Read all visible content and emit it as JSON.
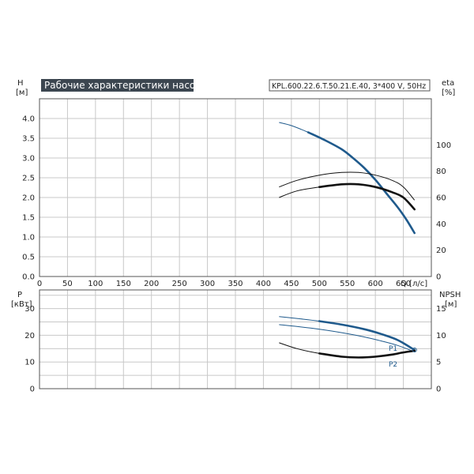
{
  "header": {
    "title": "Рабочие характеристики насоса",
    "model": "KPL.600.22.6.T.50.21.E.40, 3*400 V, 50Hz"
  },
  "colors": {
    "blue": "#1f5a8c",
    "black": "#111111",
    "grid": "#c8c8c8",
    "title_bg": "#3c4650"
  },
  "chart_data": [
    {
      "type": "line",
      "panel": "top",
      "xlabel": "Q [л/с]",
      "xlim": [
        0,
        700
      ],
      "xticks": [
        0,
        50,
        100,
        150,
        200,
        250,
        300,
        350,
        400,
        450,
        500,
        550,
        600,
        650
      ],
      "left_axis": {
        "label_line1": "H",
        "label_line2": "[м]",
        "ylim": [
          0,
          4.5
        ],
        "ticks": [
          "0.0",
          "0.5",
          "1.0",
          "1.5",
          "2.0",
          "2.5",
          "3.0",
          "3.5",
          "4.0"
        ]
      },
      "right_axis": {
        "label_line1": "eta",
        "label_line2": "[%]",
        "ylim": [
          0,
          135
        ],
        "ticks": [
          "0",
          "20",
          "40",
          "60",
          "80",
          "100"
        ]
      },
      "series": [
        {
          "axis": "left",
          "color": "blue",
          "points": [
            [
              428,
              3.9
            ],
            [
              450,
              3.82
            ],
            [
              480,
              3.65
            ],
            [
              510,
              3.45
            ],
            [
              540,
              3.22
            ],
            [
              560,
              3.0
            ],
            [
              580,
              2.75
            ],
            [
              600,
              2.45
            ],
            [
              620,
              2.1
            ],
            [
              640,
              1.75
            ],
            [
              655,
              1.45
            ],
            [
              670,
              1.1
            ]
          ],
          "bold_from": 480
        },
        {
          "axis": "right",
          "color": "black",
          "points": [
            [
              428,
              60
            ],
            [
              460,
              65
            ],
            [
              500,
              68
            ],
            [
              540,
              70
            ],
            [
              570,
              70
            ],
            [
              600,
              68
            ],
            [
              630,
              64
            ],
            [
              650,
              60
            ],
            [
              670,
              51
            ]
          ],
          "bold_from": 480
        },
        {
          "axis": "right",
          "color": "black",
          "points": [
            [
              428,
              68
            ],
            [
              460,
              73
            ],
            [
              500,
              77
            ],
            [
              540,
              79
            ],
            [
              570,
              79
            ],
            [
              600,
              77
            ],
            [
              630,
              73
            ],
            [
              650,
              68
            ],
            [
              670,
              58
            ]
          ],
          "bold_from": 9999
        }
      ]
    },
    {
      "type": "line",
      "panel": "bottom",
      "xlim": [
        0,
        700
      ],
      "left_axis": {
        "label_line1": "P",
        "label_line2": "[кВт]",
        "ylim": [
          0,
          37
        ],
        "ticks": [
          "0",
          "10",
          "20",
          "30"
        ]
      },
      "right_axis": {
        "label_line1": "NPSH",
        "label_line2": "[м]",
        "ylim": [
          0,
          18.5
        ],
        "ticks": [
          "0",
          "5",
          "10",
          "15"
        ]
      },
      "series": [
        {
          "axis": "left",
          "name": "P1",
          "color": "blue",
          "points": [
            [
              428,
              27
            ],
            [
              460,
              26.3
            ],
            [
              500,
              25.3
            ],
            [
              540,
              24
            ],
            [
              580,
              22.3
            ],
            [
              610,
              20.5
            ],
            [
              640,
              18.2
            ],
            [
              670,
              14.5
            ]
          ],
          "bold_from": 480
        },
        {
          "axis": "left",
          "color": "blue",
          "points": [
            [
              428,
              24
            ],
            [
              460,
              23.3
            ],
            [
              500,
              22.3
            ],
            [
              540,
              21
            ],
            [
              580,
              19.4
            ],
            [
              610,
              17.9
            ],
            [
              640,
              16.2
            ],
            [
              670,
              13.8
            ]
          ],
          "bold_from": 9999
        },
        {
          "axis": "right",
          "name": "P2",
          "color": "black",
          "points": [
            [
              428,
              8.6
            ],
            [
              460,
              7.5
            ],
            [
              500,
              6.6
            ],
            [
              540,
              6.0
            ],
            [
              570,
              5.85
            ],
            [
              600,
              6.0
            ],
            [
              630,
              6.4
            ],
            [
              650,
              6.8
            ],
            [
              670,
              7.1
            ]
          ],
          "bold_from": 480
        }
      ]
    }
  ]
}
